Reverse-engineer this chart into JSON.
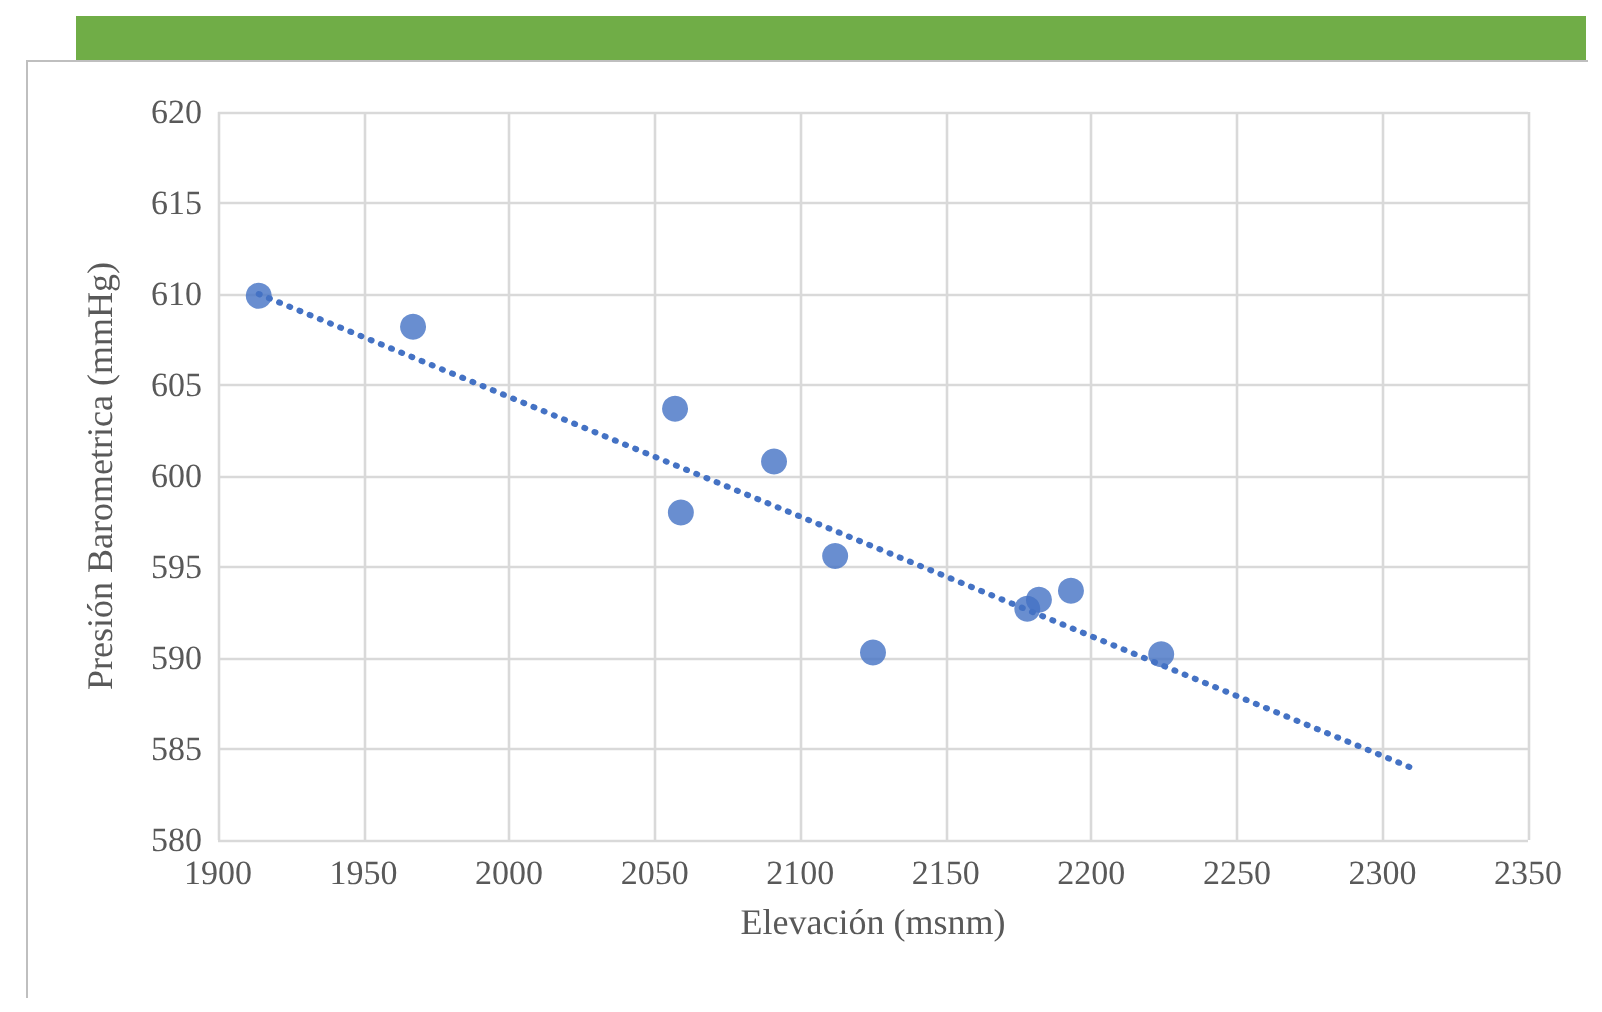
{
  "chart_data": {
    "type": "scatter",
    "xlabel": "Elevación (msnm)",
    "ylabel": "Presión Barometrica (mmHg)",
    "xlim": [
      1900,
      2350
    ],
    "xticks": [
      1900,
      1950,
      2000,
      2050,
      2100,
      2150,
      2200,
      2250,
      2300,
      2350
    ],
    "ylim": [
      580,
      620
    ],
    "yticks": [
      580,
      585,
      590,
      595,
      600,
      605,
      610,
      615,
      620
    ],
    "grid": true,
    "series": [
      {
        "color": "#4472c4",
        "marker": "circle",
        "x": [
          1914,
          1967,
          2057,
          2059,
          2091,
          2112,
          2125,
          2178,
          2182,
          2193,
          2224
        ],
        "values": [
          609.9,
          608.2,
          603.7,
          598.0,
          600.8,
          595.6,
          590.3,
          592.7,
          593.2,
          593.7,
          590.2
        ]
      },
      {
        "type": "line",
        "color": "#4472c4",
        "marker": "none",
        "line_style": "dotted",
        "x": [
          1914,
          2311
        ],
        "values": [
          610.0,
          583.9
        ]
      }
    ]
  }
}
